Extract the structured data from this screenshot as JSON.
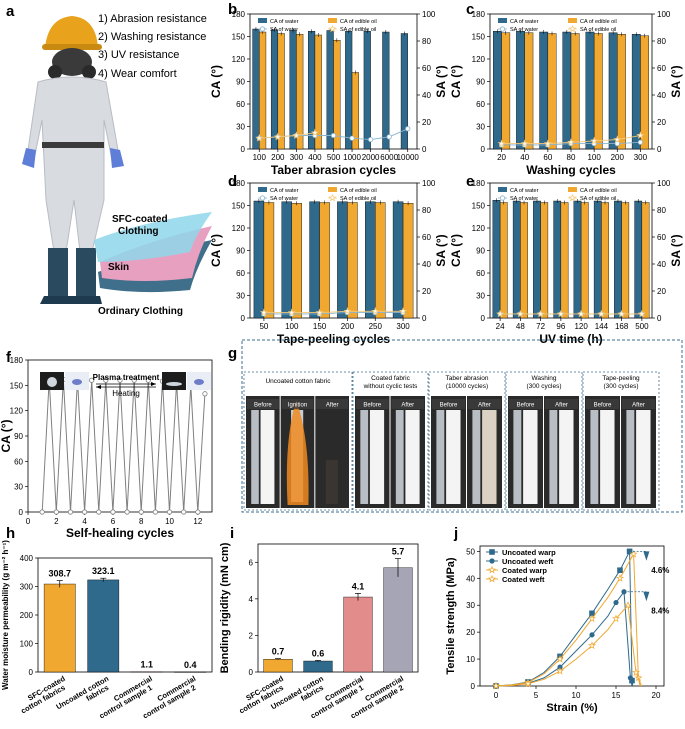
{
  "colors": {
    "water": "#2f6a8c",
    "oil": "#f0a830",
    "sa_water": "#8ab4d0",
    "sa_oil": "#f5c878",
    "gray": "#888888",
    "pink": "#e38c8c",
    "lavender": "#a5a5b5"
  },
  "panel_labels": [
    "a",
    "b",
    "c",
    "d",
    "e",
    "f",
    "g",
    "h",
    "i",
    "j"
  ],
  "panel_a": {
    "features": [
      "1) Abrasion resistance",
      "2) Washing resistance",
      "3) UV resistance",
      "4) Wear comfort"
    ],
    "labels": {
      "coated": "SFC-coated\nClothing",
      "skin": "Skin",
      "ordinary": "Ordinary Clothing"
    }
  },
  "chart_data": [
    {
      "id": "b",
      "type": "bar",
      "categories": [
        "100",
        "200",
        "300",
        "400",
        "500",
        "1000",
        "2000",
        "6000",
        "10000"
      ],
      "xlabel": "Taber abrasion cycles",
      "ylabel": "CA (°)",
      "y2label": "SA (°)",
      "ylim": [
        0,
        180
      ],
      "yticks": [
        0,
        30,
        60,
        90,
        120,
        150,
        180
      ],
      "y2lim": [
        0,
        100
      ],
      "y2ticks": [
        0,
        20,
        40,
        60,
        80,
        100
      ],
      "legend": [
        "CA of water",
        "CA of edible oil",
        "SA of water",
        "SA of edible oil"
      ],
      "series": [
        {
          "name": "CA of water",
          "values": [
            160,
            159,
            158,
            157,
            158,
            157,
            157,
            156,
            154
          ]
        },
        {
          "name": "CA of edible oil",
          "values": [
            156,
            154,
            153,
            152,
            145,
            102,
            null,
            null,
            null
          ]
        },
        {
          "name": "SA of water",
          "values": [
            8,
            9,
            10,
            10,
            10,
            8,
            7,
            9,
            15
          ]
        },
        {
          "name": "SA of edible oil",
          "values": [
            8,
            9,
            10,
            12,
            null,
            null,
            null,
            null,
            null
          ]
        }
      ]
    },
    {
      "id": "c",
      "type": "bar",
      "categories": [
        "20",
        "40",
        "60",
        "80",
        "100",
        "200",
        "300"
      ],
      "xlabel": "Washing cycles",
      "ylabel": "CA (°)",
      "y2label": "SA (°)",
      "ylim": [
        0,
        180
      ],
      "yticks": [
        0,
        30,
        60,
        90,
        120,
        150,
        180
      ],
      "y2lim": [
        0,
        100
      ],
      "y2ticks": [
        0,
        20,
        40,
        60,
        80,
        100
      ],
      "legend": [
        "CA of water",
        "CA of edible oil",
        "SA of water",
        "SA of edible oil"
      ],
      "series": [
        {
          "name": "CA of water",
          "values": [
            157,
            157,
            156,
            156,
            156,
            155,
            153
          ]
        },
        {
          "name": "CA of edible oil",
          "values": [
            155,
            155,
            154,
            154,
            154,
            153,
            151
          ]
        },
        {
          "name": "SA of water",
          "values": [
            3,
            3,
            3,
            4,
            4,
            4,
            5
          ]
        },
        {
          "name": "SA of edible oil",
          "values": [
            4,
            4,
            4,
            5,
            6,
            7,
            10
          ]
        }
      ]
    },
    {
      "id": "d",
      "type": "bar",
      "categories": [
        "50",
        "100",
        "150",
        "200",
        "250",
        "300"
      ],
      "xlabel": "Tape-peeling cycles",
      "ylabel": "CA (°)",
      "y2label": "SA (°)",
      "ylim": [
        0,
        180
      ],
      "yticks": [
        0,
        30,
        60,
        90,
        120,
        150,
        180
      ],
      "y2lim": [
        0,
        100
      ],
      "y2ticks": [
        0,
        20,
        40,
        60,
        80,
        100
      ],
      "legend": [
        "CA of water",
        "CA of edible oil",
        "SA of water",
        "SA of edible oil"
      ],
      "series": [
        {
          "name": "CA of water",
          "values": [
            156,
            155,
            155,
            155,
            155,
            155
          ]
        },
        {
          "name": "CA of edible oil",
          "values": [
            154,
            153,
            154,
            154,
            154,
            153
          ]
        },
        {
          "name": "SA of water",
          "values": [
            3,
            3,
            3,
            4,
            4,
            4
          ]
        },
        {
          "name": "SA of edible oil",
          "values": [
            4,
            4,
            4,
            5,
            5,
            5
          ]
        }
      ]
    },
    {
      "id": "e",
      "type": "bar",
      "categories": [
        "24",
        "48",
        "72",
        "96",
        "120",
        "144",
        "168",
        "500"
      ],
      "xlabel": "UV time (h)",
      "ylabel": "CA (°)",
      "y2label": "SA (°)",
      "ylim": [
        0,
        180
      ],
      "yticks": [
        0,
        30,
        60,
        90,
        120,
        150,
        180
      ],
      "y2lim": [
        0,
        100
      ],
      "y2ticks": [
        0,
        20,
        40,
        60,
        80,
        100
      ],
      "legend": [
        "CA of water",
        "CA of edible oil",
        "SA of water",
        "SA of edible oil"
      ],
      "series": [
        {
          "name": "CA of water",
          "values": [
            157,
            156,
            156,
            156,
            156,
            156,
            156,
            156
          ]
        },
        {
          "name": "CA of edible oil",
          "values": [
            154,
            154,
            154,
            154,
            154,
            154,
            154,
            154
          ]
        },
        {
          "name": "SA of water",
          "values": [
            3,
            3,
            3,
            3,
            3,
            3,
            3,
            3
          ]
        },
        {
          "name": "SA of edible oil",
          "values": [
            3,
            3,
            3,
            3,
            3,
            3,
            3,
            3
          ]
        }
      ]
    },
    {
      "id": "f",
      "type": "line",
      "xlabel": "Self-healing cycles",
      "ylabel": "CA (°)",
      "xlim": [
        0,
        13
      ],
      "xticks": [
        0,
        2,
        4,
        6,
        8,
        10,
        12
      ],
      "ylim": [
        0,
        180
      ],
      "yticks": [
        0,
        30,
        60,
        90,
        120,
        150,
        180
      ],
      "x": [
        1,
        1.5,
        2,
        2.5,
        3,
        3.5,
        4,
        4.5,
        5,
        5.5,
        6,
        6.5,
        7,
        7.5,
        8,
        8.5,
        9,
        9.5,
        10,
        10.5,
        11,
        11.5,
        12,
        12.5
      ],
      "y": [
        0,
        157,
        0,
        157,
        0,
        157,
        0,
        156,
        0,
        156,
        0,
        156,
        0,
        156,
        0,
        156,
        0,
        155,
        0,
        154,
        0,
        150,
        0,
        140
      ],
      "annotations": {
        "plasma": "Plasma treatment",
        "heating": "Heating"
      }
    },
    {
      "id": "h",
      "type": "bar",
      "categories": [
        "SFC-coated\ncotton fabrics",
        "Uncoated cotton\nfabrics",
        "Commercial\ncontrol sample 1",
        "Commercial\ncontrol sample 2"
      ],
      "values": [
        308.7,
        323.1,
        1.1,
        0.4
      ],
      "labels": [
        "308.7",
        "323.1",
        "1.1",
        "0.4"
      ],
      "errors": [
        12,
        6,
        0,
        0
      ],
      "ylabel": "Water moisture permeability (g m⁻² h⁻¹)",
      "ylim": [
        0,
        400
      ],
      "yticks": [
        0,
        100,
        200,
        300,
        400
      ]
    },
    {
      "id": "i",
      "type": "bar",
      "categories": [
        "SFC-coated\ncotton fabrics",
        "Uncoated cotton\nfabrics",
        "Commercial\ncontrol sample 1",
        "Commercial\ncontrol sample 2"
      ],
      "values": [
        0.7,
        0.6,
        4.1,
        5.7
      ],
      "labels": [
        "0.7",
        "0.6",
        "4.1",
        "5.7"
      ],
      "errors": [
        0.03,
        0.03,
        0.2,
        0.5
      ],
      "ylabel": "Bending rigidity (mN cm)",
      "ylim": [
        0,
        7
      ],
      "yticks": [
        0,
        2,
        4,
        6
      ]
    },
    {
      "id": "j",
      "type": "line",
      "xlabel": "Strain (%)",
      "ylabel": "Tensile strength (MPa)",
      "xlim": [
        -2,
        21
      ],
      "xticks": [
        0,
        5,
        10,
        15,
        20
      ],
      "ylim": [
        0,
        52
      ],
      "yticks": [
        0,
        10,
        20,
        30,
        40,
        50
      ],
      "series": [
        {
          "name": "Uncoated warp",
          "x": [
            0,
            2,
            4,
            6,
            8,
            10,
            12,
            14,
            15.5,
            16.7,
            17,
            17.1
          ],
          "y": [
            0,
            0.5,
            1.5,
            5,
            11,
            19,
            27,
            36,
            43,
            50,
            2,
            0
          ]
        },
        {
          "name": "Uncoated weft",
          "x": [
            0,
            2,
            4,
            6,
            8,
            10,
            12,
            14,
            15,
            16,
            16.8,
            17
          ],
          "y": [
            0,
            0.3,
            1,
            3,
            7,
            13,
            19,
            26,
            31,
            35,
            3,
            0
          ]
        },
        {
          "name": "Coated warp",
          "x": [
            0,
            2,
            4,
            6,
            8,
            10,
            12,
            14,
            15.5,
            17.2,
            17.8,
            18
          ],
          "y": [
            0,
            0.4,
            1.3,
            4.5,
            10,
            17,
            25,
            33,
            40,
            49,
            3,
            0
          ]
        },
        {
          "name": "Coated weft",
          "x": [
            0,
            2,
            4,
            6,
            8,
            10,
            12,
            14,
            15,
            16.5,
            17.5,
            18.2
          ],
          "y": [
            0,
            0.2,
            0.8,
            2.5,
            5.5,
            10,
            15,
            21,
            25,
            30,
            5,
            0
          ]
        }
      ],
      "annotations": [
        "4.6%",
        "8.4%"
      ]
    }
  ],
  "panel_g": {
    "groups": [
      {
        "title": "Uncoated cotton fabric",
        "photos": [
          "Before",
          "Ignition",
          "After"
        ]
      },
      {
        "title": "Coated fabric\nwithout cyclic tests",
        "photos": [
          "Before",
          "After"
        ]
      },
      {
        "title": "Taber abrasion\n(10000 cycles)",
        "photos": [
          "Before",
          "After"
        ]
      },
      {
        "title": "Washing\n(300 cycles)",
        "photos": [
          "Before",
          "After"
        ]
      },
      {
        "title": "Tape-peeling\n(300 cycles)",
        "photos": [
          "Before",
          "After"
        ]
      }
    ]
  }
}
